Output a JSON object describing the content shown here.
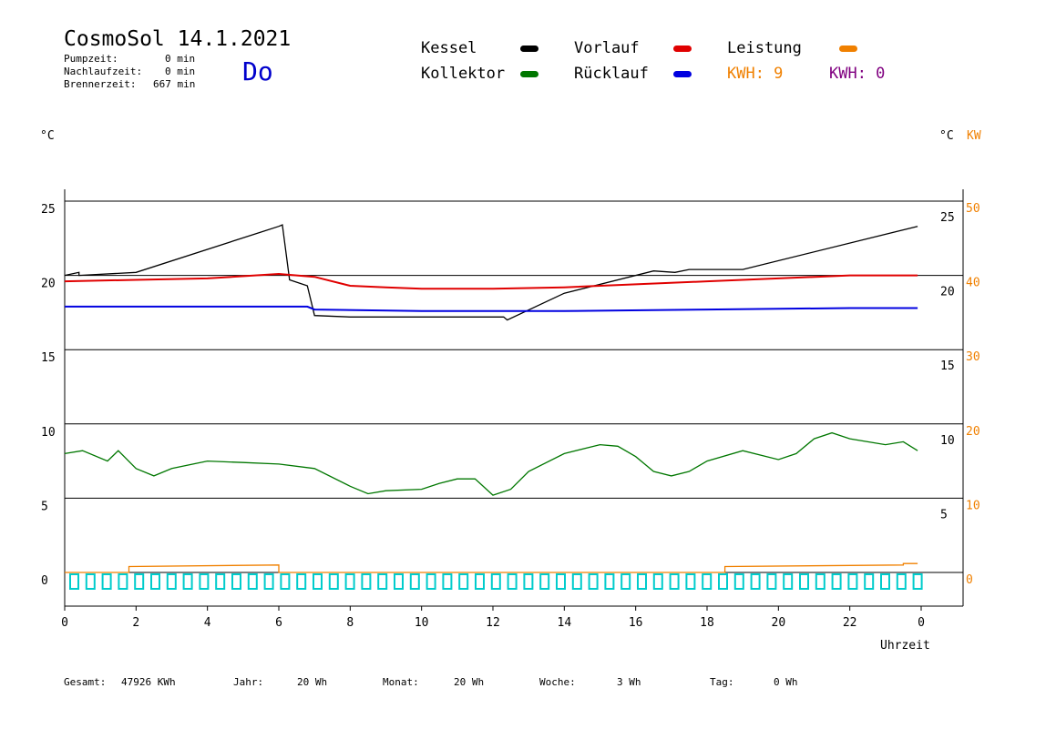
{
  "header": {
    "title": "CosmoSol 14.1.2021",
    "day": "Do",
    "stats": [
      {
        "label": "Pumpzeit:",
        "value": "0 min"
      },
      {
        "label": "Nachlaufzeit:",
        "value": "0 min"
      },
      {
        "label": "Brennerzeit:",
        "value": "667 min"
      }
    ]
  },
  "legend": {
    "kessel": {
      "label": "Kessel",
      "color": "#000000"
    },
    "kollektor": {
      "label": "Kollektor",
      "color": "#007700"
    },
    "vorlauf": {
      "label": "Vorlauf",
      "color": "#e00000"
    },
    "ruecklauf": {
      "label": "Rücklauf",
      "color": "#0000e0"
    },
    "leistung": {
      "label": "Leistung",
      "color": "#f08000"
    },
    "kwh_orange": "KWH: 9",
    "kwh_purple": "KWH: 0",
    "purple_color": "#800080"
  },
  "axes": {
    "left_unit": "°C",
    "right_unit": "°C",
    "right_unit2": "KW",
    "xlabel": "Uhrzeit"
  },
  "footer": {
    "gesamt_label": "Gesamt:",
    "gesamt_value": "47926 KWh",
    "jahr_label": "Jahr:",
    "jahr_value": "20 Wh",
    "monat_label": "Monat:",
    "monat_value": "20 Wh",
    "woche_label": "Woche:",
    "woche_value": "3 Wh",
    "tag_label": "Tag:",
    "tag_value": "0 Wh"
  },
  "chart_data": {
    "type": "line",
    "x_range": [
      0,
      24
    ],
    "x_ticks": [
      "0",
      "2",
      "4",
      "6",
      "8",
      "10",
      "12",
      "14",
      "16",
      "18",
      "20",
      "22",
      "0"
    ],
    "y_left": {
      "ticks": [
        0,
        5,
        10,
        15,
        20,
        25
      ],
      "ylim": [
        -2,
        26
      ]
    },
    "y_right_temp": {
      "ticks": [
        5,
        10,
        15,
        20,
        25
      ]
    },
    "y_right_kw": {
      "ticks": [
        0,
        10,
        20,
        30,
        40,
        50
      ],
      "color": "#f08000"
    },
    "gridlines_y": [
      0,
      5,
      10,
      15,
      20,
      25
    ],
    "series": [
      {
        "name": "Kessel",
        "color": "#000000",
        "x": [
          0,
          0.4,
          0.4,
          2,
          6,
          6.1,
          6.3,
          6.8,
          7,
          8,
          10,
          12.3,
          12.4,
          14,
          16.5,
          17.1,
          17.5,
          19,
          23.9
        ],
        "y": [
          20,
          20.2,
          20,
          20.2,
          23.3,
          23.4,
          19.7,
          19.3,
          17.3,
          17.2,
          17.2,
          17.2,
          17.0,
          18.8,
          20.3,
          20.2,
          20.4,
          20.4,
          23.3
        ]
      },
      {
        "name": "Vorlauf",
        "color": "#e00000",
        "x": [
          0,
          2,
          4,
          6,
          7,
          8,
          9,
          10,
          11,
          12,
          14,
          16,
          18,
          20,
          22,
          23.9
        ],
        "y": [
          19.6,
          19.7,
          19.8,
          20.1,
          19.9,
          19.3,
          19.2,
          19.1,
          19.1,
          19.1,
          19.2,
          19.4,
          19.6,
          19.8,
          20.0,
          20.0
        ]
      },
      {
        "name": "Rücklauf",
        "color": "#0000e0",
        "x": [
          0,
          4,
          6.8,
          7,
          10,
          14,
          18,
          22,
          23.9
        ],
        "y": [
          17.9,
          17.9,
          17.9,
          17.7,
          17.6,
          17.6,
          17.7,
          17.8,
          17.8
        ]
      },
      {
        "name": "Kollektor",
        "color": "#007700",
        "x": [
          0,
          0.5,
          1.2,
          1.5,
          2,
          2.5,
          3,
          4,
          5,
          6,
          7,
          8,
          8.5,
          9,
          10,
          10.5,
          11,
          11.5,
          12,
          12.5,
          13,
          14,
          15,
          15.5,
          16,
          16.5,
          17,
          17.5,
          18,
          19,
          20,
          20.5,
          21,
          21.5,
          22,
          23,
          23.5,
          23.9
        ],
        "y": [
          8.0,
          8.2,
          7.5,
          8.2,
          7.0,
          6.5,
          7.0,
          7.5,
          7.4,
          7.3,
          7.0,
          5.8,
          5.3,
          5.5,
          5.6,
          6.0,
          6.3,
          6.3,
          5.2,
          5.6,
          6.8,
          8.0,
          8.6,
          8.5,
          7.8,
          6.8,
          6.5,
          6.8,
          7.5,
          8.2,
          7.6,
          8.0,
          9.0,
          9.4,
          9.0,
          8.6,
          8.8,
          8.2
        ]
      },
      {
        "name": "Leistung",
        "color": "#f08000",
        "x": [
          0,
          1.8,
          1.8,
          6,
          6,
          18.5,
          18.5,
          23.5,
          23.5,
          23.9
        ],
        "y": [
          0,
          0,
          0.4,
          0.5,
          0,
          0,
          0.4,
          0.5,
          0.6,
          0.6
        ]
      },
      {
        "name": "Brenner",
        "color": "#00cccc",
        "x": [
          0,
          23.9
        ],
        "y": [
          0,
          0
        ]
      }
    ]
  }
}
